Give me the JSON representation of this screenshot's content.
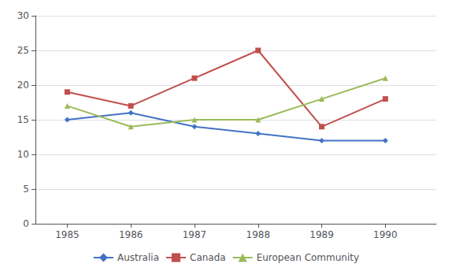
{
  "chart_data": {
    "type": "line",
    "x": [
      1985,
      1986,
      1987,
      1988,
      1989,
      1990
    ],
    "series": [
      {
        "name": "Australia",
        "color": "#4472C4",
        "marker": "diamond",
        "values": [
          15,
          16,
          14,
          13,
          12,
          12
        ]
      },
      {
        "name": "Canada",
        "color": "#C0504D",
        "marker": "square",
        "values": [
          19,
          17,
          21,
          25,
          14,
          18
        ]
      },
      {
        "name": "European Community",
        "color": "#9BBB59",
        "marker": "triangle",
        "values": [
          17,
          14,
          15,
          15,
          18,
          21
        ]
      }
    ],
    "xlim": [
      1984.5,
      1990.8
    ],
    "xticks": [
      1985,
      1986,
      1987,
      1988,
      1989,
      1990
    ],
    "ylim": [
      0,
      30
    ],
    "yticks": [
      0,
      5,
      10,
      15,
      20,
      25,
      30
    ],
    "grid": true,
    "legend": "bottom"
  }
}
